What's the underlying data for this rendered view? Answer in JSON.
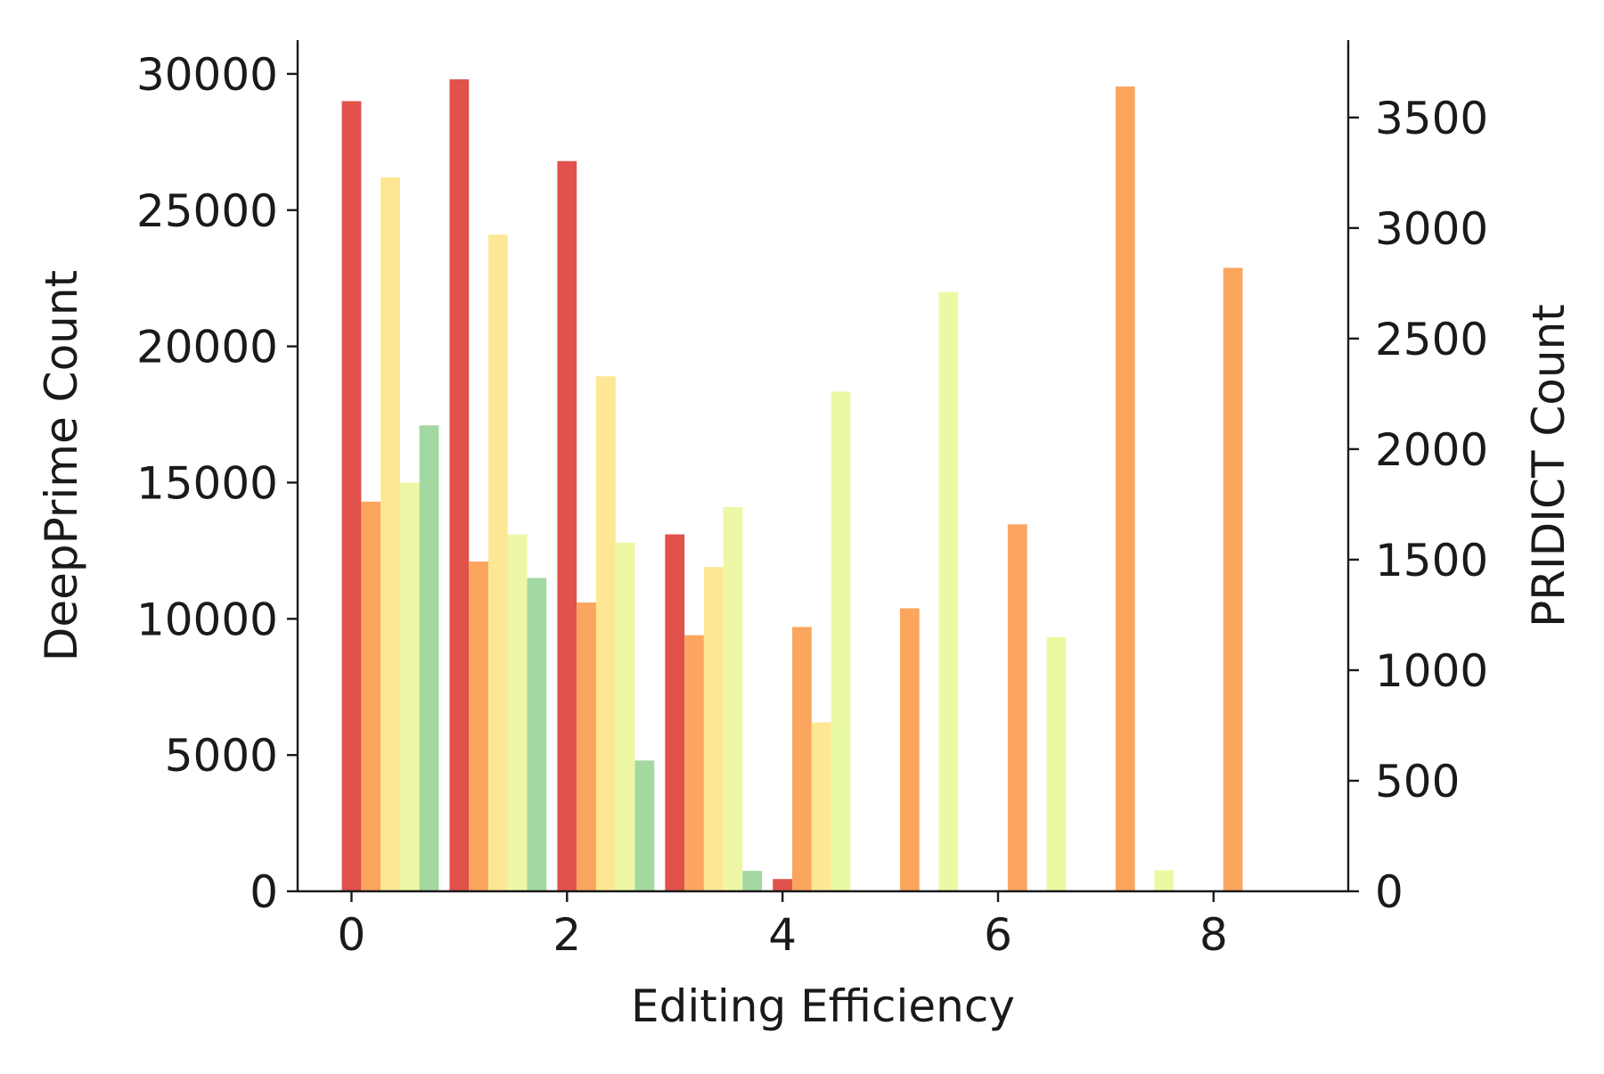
{
  "chart_data": {
    "type": "bar",
    "xlabel": "Editing Efficiency",
    "ylabel_left": "DeepPrime Count",
    "ylabel_right": "PRIDICT Count",
    "xlim": [
      -0.5,
      9.25
    ],
    "ylim_left": [
      0,
      31240
    ],
    "ylim_right": [
      0,
      3850
    ],
    "x_ticks": [
      0,
      2,
      4,
      6,
      8
    ],
    "y_ticks_left": [
      0,
      5000,
      10000,
      15000,
      20000,
      25000,
      30000
    ],
    "y_ticks_right": [
      0,
      500,
      1000,
      1500,
      2000,
      2500,
      3000,
      3500
    ],
    "grid": false,
    "bar_width": 0.18,
    "bars": [
      {
        "x": 0.0,
        "value": 29000,
        "axis": "left",
        "color": "#e0524b"
      },
      {
        "x": 0.18,
        "value": 14300,
        "axis": "left",
        "color": "#fba55e"
      },
      {
        "x": 0.36,
        "value": 26200,
        "axis": "left",
        "color": "#fee794"
      },
      {
        "x": 0.54,
        "value": 15000,
        "axis": "left",
        "color": "#eef7a6"
      },
      {
        "x": 0.72,
        "value": 17100,
        "axis": "left",
        "color": "#a3d9a0"
      },
      {
        "x": 1.0,
        "value": 29800,
        "axis": "left",
        "color": "#e0524b"
      },
      {
        "x": 1.18,
        "value": 12100,
        "axis": "left",
        "color": "#fba55e"
      },
      {
        "x": 1.36,
        "value": 24100,
        "axis": "left",
        "color": "#fee794"
      },
      {
        "x": 1.54,
        "value": 13100,
        "axis": "left",
        "color": "#eef7a6"
      },
      {
        "x": 1.72,
        "value": 11500,
        "axis": "left",
        "color": "#a3d9a0"
      },
      {
        "x": 2.0,
        "value": 26800,
        "axis": "left",
        "color": "#e0524b"
      },
      {
        "x": 2.18,
        "value": 10600,
        "axis": "left",
        "color": "#fba55e"
      },
      {
        "x": 2.36,
        "value": 18900,
        "axis": "left",
        "color": "#fee794"
      },
      {
        "x": 2.54,
        "value": 12800,
        "axis": "left",
        "color": "#eef7a6"
      },
      {
        "x": 2.72,
        "value": 4800,
        "axis": "left",
        "color": "#a3d9a0"
      },
      {
        "x": 3.0,
        "value": 13100,
        "axis": "left",
        "color": "#e0524b"
      },
      {
        "x": 3.18,
        "value": 9400,
        "axis": "left",
        "color": "#fba55e"
      },
      {
        "x": 3.36,
        "value": 11900,
        "axis": "left",
        "color": "#fee794"
      },
      {
        "x": 3.54,
        "value": 14100,
        "axis": "left",
        "color": "#eef7a6"
      },
      {
        "x": 3.72,
        "value": 750,
        "axis": "left",
        "color": "#a3d9a0"
      },
      {
        "x": 4.0,
        "value": 450,
        "axis": "left",
        "color": "#e0524b"
      },
      {
        "x": 4.18,
        "value": 9700,
        "axis": "left",
        "color": "#fba55e"
      },
      {
        "x": 4.36,
        "value": 6200,
        "axis": "left",
        "color": "#fee794"
      },
      {
        "x": 4.54,
        "value": 2260,
        "axis": "right",
        "color": "#eafaa3"
      },
      {
        "x": 5.18,
        "value": 1280,
        "axis": "right",
        "color": "#fba55e"
      },
      {
        "x": 5.54,
        "value": 2710,
        "axis": "right",
        "color": "#eafaa3"
      },
      {
        "x": 6.18,
        "value": 1660,
        "axis": "right",
        "color": "#fba55e"
      },
      {
        "x": 6.54,
        "value": 1150,
        "axis": "right",
        "color": "#eafaa3"
      },
      {
        "x": 7.18,
        "value": 3640,
        "axis": "right",
        "color": "#fba55e"
      },
      {
        "x": 7.54,
        "value": 95,
        "axis": "right",
        "color": "#eafaa3"
      },
      {
        "x": 8.18,
        "value": 2820,
        "axis": "right",
        "color": "#fba55e"
      }
    ]
  }
}
